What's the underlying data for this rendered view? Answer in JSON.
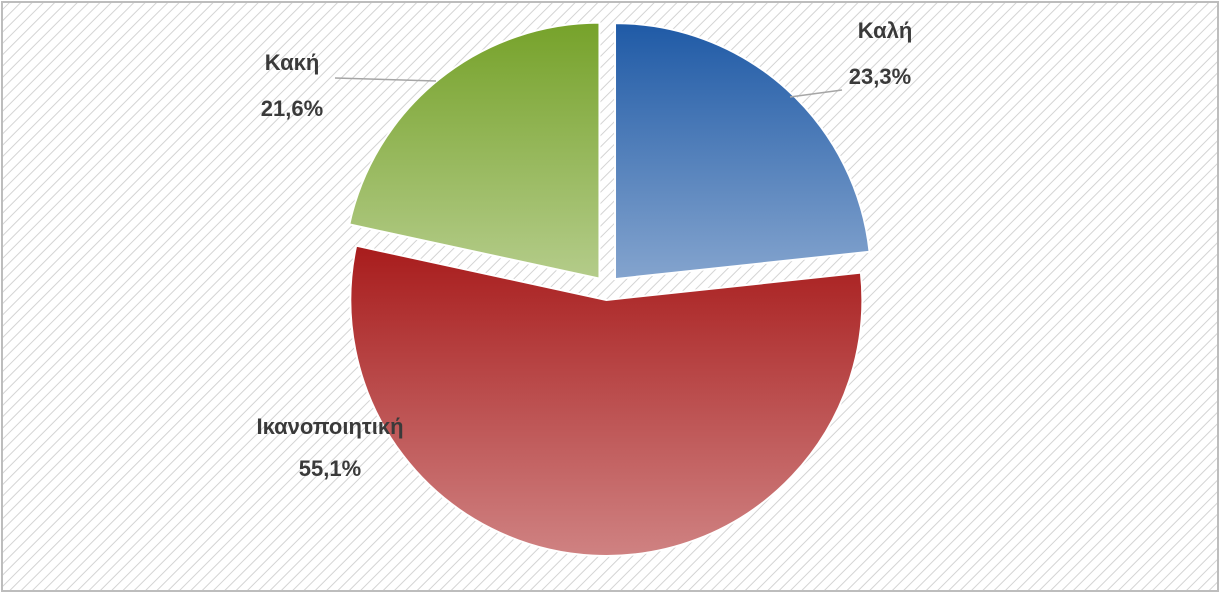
{
  "chart_data": {
    "type": "pie",
    "categories": [
      "Καλή",
      "Ικανοποιητική",
      "Κακή"
    ],
    "values": [
      23.3,
      55.1,
      21.6
    ],
    "value_labels": [
      "23,3%",
      "55,1%",
      "21,6%"
    ],
    "colors": [
      "#1f5aa6",
      "#a81c1c",
      "#76a22a"
    ]
  }
}
